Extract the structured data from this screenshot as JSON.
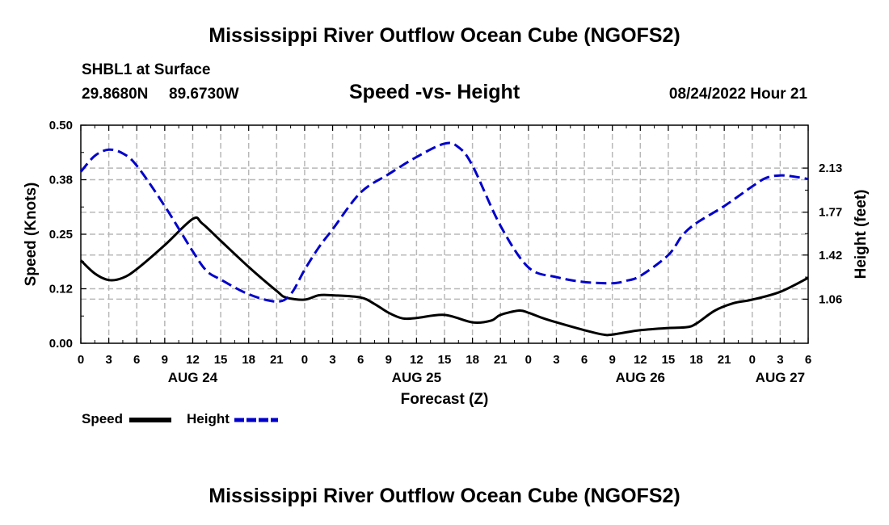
{
  "main_title": "Mississippi River Outflow Ocean Cube (NGOFS2)",
  "footer_title": "Mississippi River Outflow Ocean Cube (NGOFS2)",
  "station": {
    "name": "SHBL1 at Surface",
    "lat": "29.8680N",
    "lon": "89.6730W"
  },
  "run_time": "08/24/2022 Hour 21",
  "chart_data": {
    "type": "line",
    "title": "Speed -vs- Height",
    "xlabel": "Forecast (Z)",
    "ylabel_left": "Speed (Knots)",
    "ylabel_right": "Height (feet)",
    "grid": true,
    "legend_position": "bottom-left",
    "x_unit": "hours since Aug 24 00Z",
    "x_range": [
      0,
      78
    ],
    "x_ticks": [
      {
        "x": 0,
        "label": "0"
      },
      {
        "x": 3,
        "label": "3"
      },
      {
        "x": 6,
        "label": "6"
      },
      {
        "x": 9,
        "label": "9"
      },
      {
        "x": 12,
        "label": "12"
      },
      {
        "x": 15,
        "label": "15"
      },
      {
        "x": 18,
        "label": "18"
      },
      {
        "x": 21,
        "label": "21"
      },
      {
        "x": 24,
        "label": "0"
      },
      {
        "x": 27,
        "label": "3"
      },
      {
        "x": 30,
        "label": "6"
      },
      {
        "x": 33,
        "label": "9"
      },
      {
        "x": 36,
        "label": "12"
      },
      {
        "x": 39,
        "label": "15"
      },
      {
        "x": 42,
        "label": "18"
      },
      {
        "x": 45,
        "label": "21"
      },
      {
        "x": 48,
        "label": "0"
      },
      {
        "x": 51,
        "label": "3"
      },
      {
        "x": 54,
        "label": "6"
      },
      {
        "x": 57,
        "label": "9"
      },
      {
        "x": 60,
        "label": "12"
      },
      {
        "x": 63,
        "label": "15"
      },
      {
        "x": 66,
        "label": "18"
      },
      {
        "x": 69,
        "label": "21"
      },
      {
        "x": 72,
        "label": "0"
      },
      {
        "x": 75,
        "label": "3"
      },
      {
        "x": 78,
        "label": "6"
      }
    ],
    "date_labels": [
      {
        "x": 12,
        "label": "AUG 24"
      },
      {
        "x": 36,
        "label": "AUG 25"
      },
      {
        "x": 60,
        "label": "AUG 26"
      },
      {
        "x": 75,
        "label": "AUG 27"
      }
    ],
    "y_left": {
      "range": [
        0,
        0.5
      ],
      "ticks": [
        {
          "v": 0.0,
          "label": "0.00"
        },
        {
          "v": 0.125,
          "label": "0.12"
        },
        {
          "v": 0.25,
          "label": "0.25"
        },
        {
          "v": 0.375,
          "label": "0.38"
        },
        {
          "v": 0.5,
          "label": "0.50"
        }
      ]
    },
    "y_right": {
      "range": [
        0.7,
        2.48
      ],
      "ticks": [
        {
          "v": 1.06,
          "label": "1.06"
        },
        {
          "v": 1.42,
          "label": "1.42"
        },
        {
          "v": 1.77,
          "label": "1.77"
        },
        {
          "v": 2.13,
          "label": "2.13"
        }
      ]
    },
    "series": [
      {
        "name": "Speed",
        "axis": "left",
        "color": "#000000",
        "style": "solid",
        "x": [
          0,
          1.5,
          3,
          4.5,
          6,
          9,
          12,
          13,
          15,
          18,
          21,
          22,
          24,
          25.5,
          27,
          30,
          31.5,
          33,
          34.5,
          36,
          39,
          42,
          44,
          45,
          47,
          48,
          49.5,
          51,
          54,
          56,
          57,
          60,
          63,
          65,
          66,
          68,
          70,
          72,
          75,
          78
        ],
        "values": [
          0.19,
          0.16,
          0.145,
          0.15,
          0.17,
          0.225,
          0.285,
          0.275,
          0.235,
          0.175,
          0.12,
          0.105,
          0.1,
          0.11,
          0.11,
          0.105,
          0.09,
          0.07,
          0.057,
          0.058,
          0.065,
          0.048,
          0.052,
          0.065,
          0.075,
          0.07,
          0.058,
          0.048,
          0.03,
          0.02,
          0.02,
          0.03,
          0.035,
          0.037,
          0.045,
          0.075,
          0.092,
          0.1,
          0.118,
          0.15
        ]
      },
      {
        "name": "Height",
        "axis": "right",
        "color": "#0000cc",
        "style": "dashed",
        "x": [
          0,
          1.5,
          3,
          4.5,
          6,
          9,
          12,
          13.5,
          15,
          18,
          21,
          22.5,
          24,
          25.5,
          27,
          30,
          33,
          36,
          39,
          40.5,
          42,
          45,
          48,
          51,
          54,
          57,
          58.5,
          60,
          63,
          64.5,
          66,
          69,
          72,
          73.5,
          75,
          76.5,
          78
        ],
        "values": [
          2.1,
          2.23,
          2.28,
          2.25,
          2.15,
          1.82,
          1.45,
          1.29,
          1.22,
          1.1,
          1.04,
          1.1,
          1.3,
          1.48,
          1.63,
          1.93,
          2.08,
          2.22,
          2.33,
          2.3,
          2.15,
          1.66,
          1.32,
          1.24,
          1.2,
          1.19,
          1.21,
          1.25,
          1.42,
          1.58,
          1.68,
          1.82,
          1.98,
          2.05,
          2.07,
          2.06,
          2.04
        ]
      }
    ]
  },
  "legend": {
    "speed_label": "Speed",
    "height_label": "Height"
  }
}
